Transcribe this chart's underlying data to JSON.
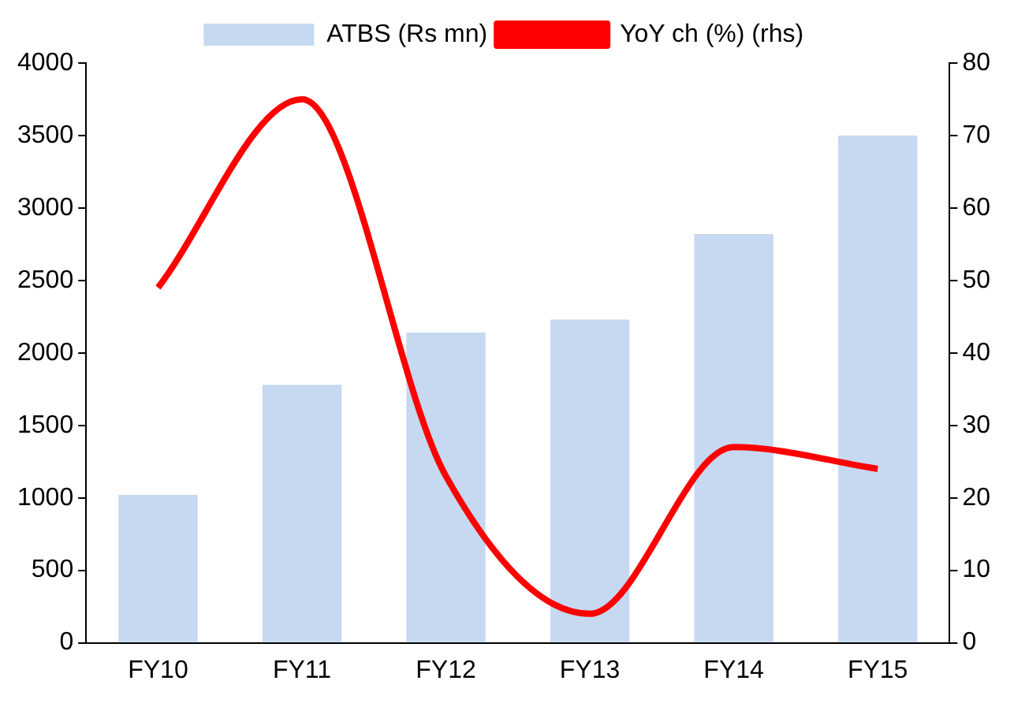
{
  "chart_data": {
    "type": "bar",
    "categories": [
      "FY10",
      "FY11",
      "FY12",
      "FY13",
      "FY14",
      "FY15"
    ],
    "series": [
      {
        "name": "ATBS (Rs mn)",
        "color": "#c6d9f1",
        "values": [
          1020,
          1780,
          2140,
          2230,
          2820,
          3500
        ]
      },
      {
        "name": "YoY ch (%) (rhs)",
        "type": "line",
        "axis": "y2",
        "color": "#ff0000",
        "values": [
          49,
          75,
          23,
          4,
          27,
          24
        ]
      }
    ],
    "ylim": [
      0,
      4000
    ],
    "yticks": [
      0,
      500,
      1000,
      1500,
      2000,
      2500,
      3000,
      3500,
      4000
    ],
    "y2lim": [
      0,
      80
    ],
    "y2ticks": [
      0,
      10,
      20,
      30,
      40,
      50,
      60,
      70,
      80
    ],
    "grid": false,
    "legend": "top",
    "marker": "none"
  }
}
